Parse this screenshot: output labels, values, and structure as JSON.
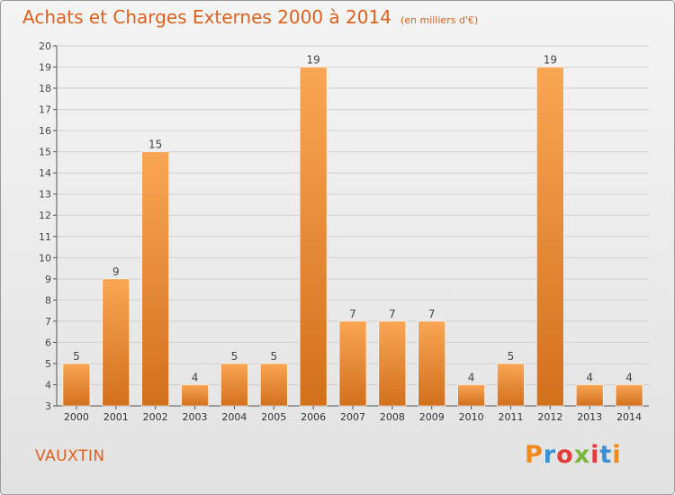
{
  "title": "Achats et Charges Externes 2000 à 2014",
  "unit": "(en milliers d'€)",
  "place": "VAUXTIN",
  "logo": {
    "text": "Proxiti",
    "letter_colors": [
      "#f08a1c",
      "#3a8fd6",
      "#e23c3c",
      "#7ab83c",
      "#e23c3c",
      "#3a8fd6",
      "#f08a1c"
    ]
  },
  "colors": {
    "accent": "#e0611e",
    "bar_light": "#f9a654",
    "bar_dark": "#d2701c"
  },
  "chart_data": {
    "type": "bar",
    "categories": [
      "2000",
      "2001",
      "2002",
      "2003",
      "2004",
      "2005",
      "2006",
      "2007",
      "2008",
      "2009",
      "2010",
      "2011",
      "2012",
      "2013",
      "2014"
    ],
    "values": [
      5,
      9,
      15,
      4,
      5,
      5,
      19,
      7,
      7,
      7,
      4,
      5,
      19,
      4,
      4
    ],
    "ylim": [
      3,
      20
    ],
    "yticks": [
      3,
      4,
      5,
      6,
      7,
      8,
      9,
      10,
      11,
      12,
      13,
      14,
      15,
      16,
      17,
      18,
      19,
      20
    ],
    "grid": true
  }
}
